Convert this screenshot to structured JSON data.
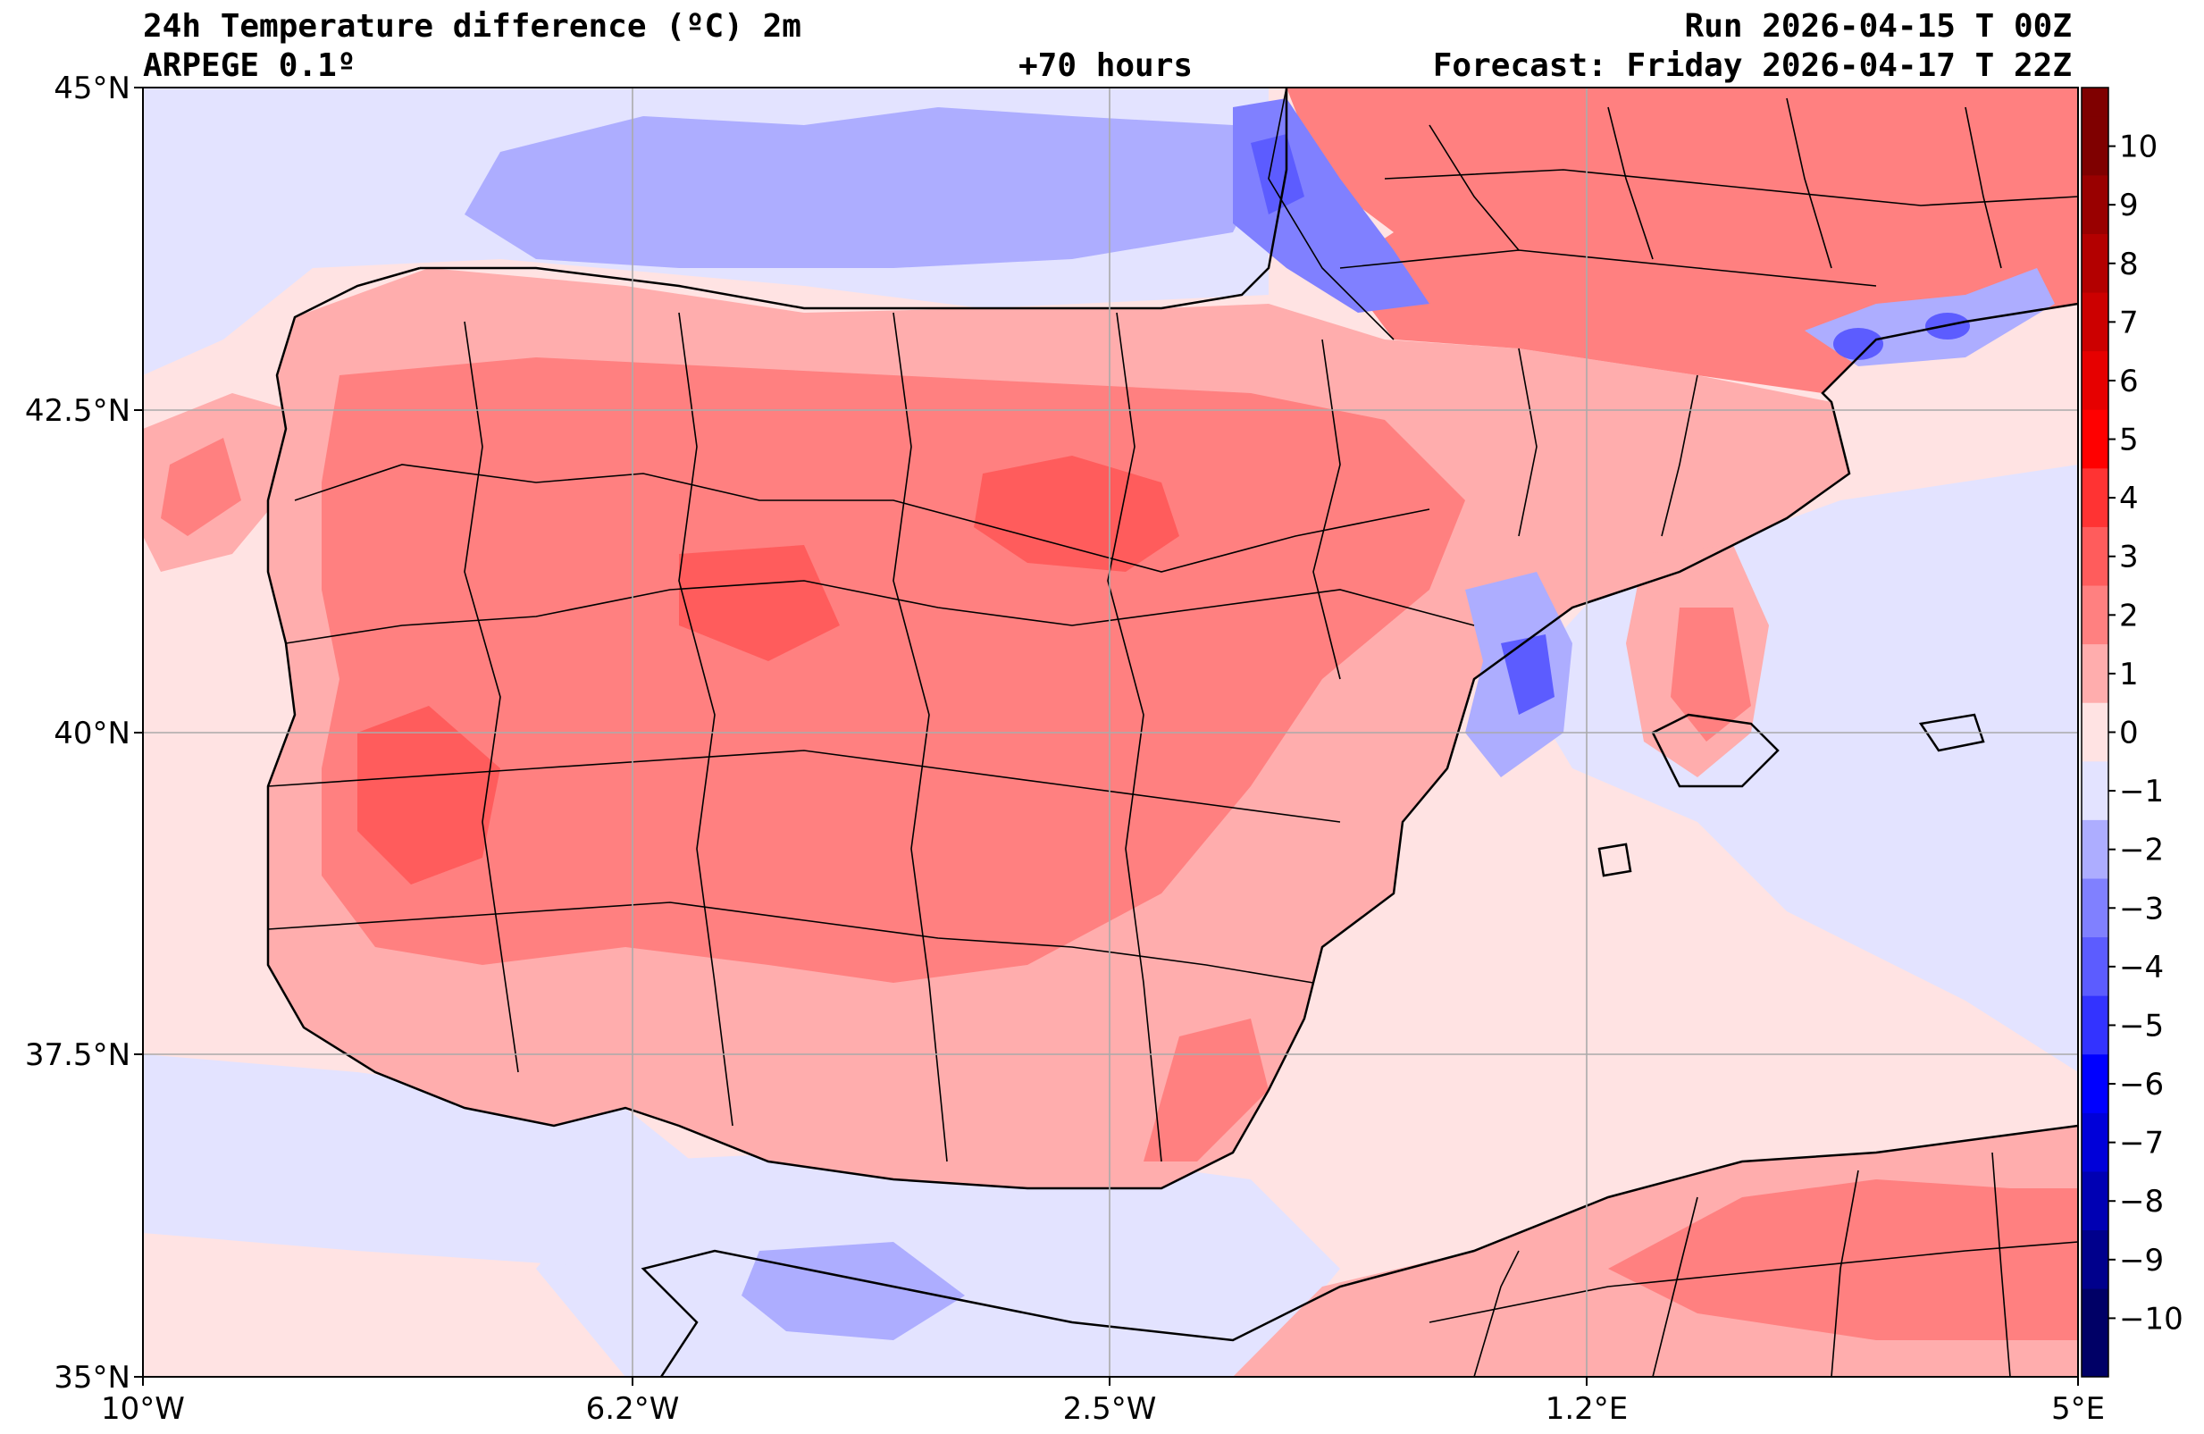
{
  "header": {
    "title": "24h Temperature difference (ºC) 2m",
    "model": "ARPEGE 0.1º",
    "lead_time": "+70 hours",
    "run": "Run 2026-04-15 T 00Z",
    "forecast": "Forecast: Friday 2026-04-17 T 22Z"
  },
  "map": {
    "lat_labels": [
      "45°N",
      "42.5°N",
      "40°N",
      "37.5°N",
      "35°N"
    ],
    "lon_labels": [
      "10°W",
      "6.2°W",
      "2.5°W",
      "1.2°E",
      "5°E"
    ]
  },
  "colorbar": {
    "labels": [
      "10",
      "9",
      "8",
      "7",
      "6",
      "5",
      "4",
      "3",
      "2",
      "1",
      "0",
      "−1",
      "−2",
      "−3",
      "−4",
      "−5",
      "−6",
      "−7",
      "−8",
      "−9",
      "−10"
    ],
    "colors": [
      "#7f0000",
      "#990000",
      "#b30000",
      "#cc0000",
      "#e60000",
      "#ff0000",
      "#ff3333",
      "#ff5c5c",
      "#ff8080",
      "#ffadad",
      "#ffe3e3",
      "#e3e3ff",
      "#adadff",
      "#8080ff",
      "#5c5cff",
      "#3333ff",
      "#0000ff",
      "#0000d9",
      "#0000b3",
      "#00008c",
      "#000066"
    ]
  },
  "colors": {
    "sea_warm": "#ffe3e3",
    "sea_cool": "#e3e3ff",
    "land_warm_1": "#ffadad",
    "land_warm_2": "#ff8080",
    "land_warm_3": "#ff5c5c",
    "cold_1": "#adadff",
    "cold_2": "#8080ff",
    "cold_3": "#5c5cff"
  }
}
